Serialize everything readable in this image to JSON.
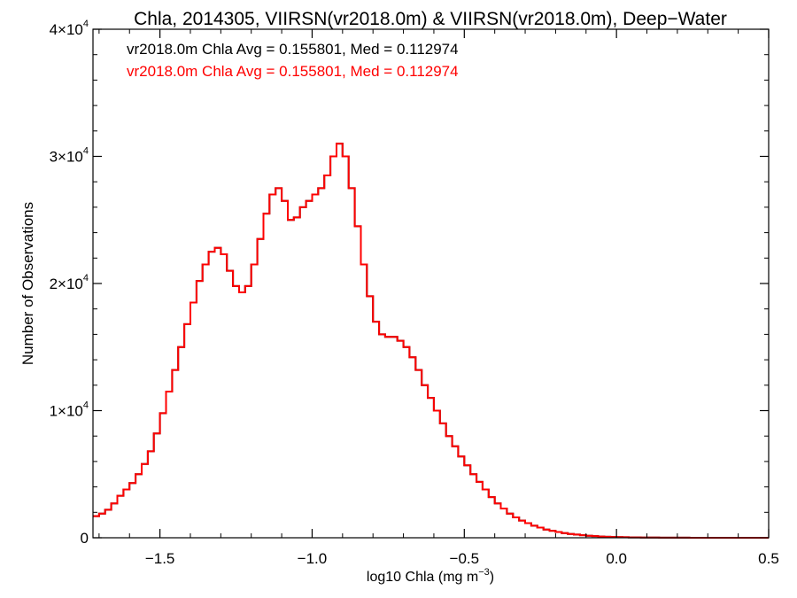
{
  "chart_data": {
    "type": "line",
    "title": "Chla, 2014305, VIIRSN(vr2018.0m) & VIIRSN(vr2018.0m), Deep−Water",
    "xlabel": "log10 Chla (mg m",
    "xlabel_sup": "−3",
    "xlabel_close": ")",
    "ylabel": "Number of Observations",
    "xlim": [
      -1.72,
      0.5
    ],
    "ylim": [
      0,
      40000
    ],
    "x_ticks": [
      -1.5,
      -1.0,
      -0.5,
      0.0,
      0.5
    ],
    "x_tick_labels": [
      "−1.5",
      "−1.0",
      "−0.5",
      "0.0",
      "0.5"
    ],
    "y_ticks": [
      0,
      10000,
      20000,
      30000,
      40000
    ],
    "y_tick_labels": [
      {
        "base": "0",
        "exp": ""
      },
      {
        "base": "1×10",
        "exp": "4"
      },
      {
        "base": "2×10",
        "exp": "4"
      },
      {
        "base": "3×10",
        "exp": "4"
      },
      {
        "base": "4×10",
        "exp": "4"
      }
    ],
    "grid": false,
    "annotations": [
      {
        "text": "vr2018.0m Chla Avg = 0.155801, Med = 0.112974",
        "color": "#000000"
      },
      {
        "text": "vr2018.0m Chla Avg = 0.155801, Med = 0.112974",
        "color": "#ff0000"
      }
    ],
    "series": [
      {
        "name": "vr2018.0m",
        "color": "#000000",
        "step": true,
        "x": [
          -1.72,
          -1.7,
          -1.68,
          -1.66,
          -1.64,
          -1.62,
          -1.6,
          -1.58,
          -1.56,
          -1.54,
          -1.52,
          -1.5,
          -1.48,
          -1.46,
          -1.44,
          -1.42,
          -1.4,
          -1.38,
          -1.36,
          -1.34,
          -1.32,
          -1.3,
          -1.28,
          -1.26,
          -1.24,
          -1.22,
          -1.2,
          -1.18,
          -1.16,
          -1.14,
          -1.12,
          -1.1,
          -1.08,
          -1.06,
          -1.04,
          -1.02,
          -1.0,
          -0.98,
          -0.96,
          -0.94,
          -0.92,
          -0.9,
          -0.88,
          -0.86,
          -0.84,
          -0.82,
          -0.8,
          -0.78,
          -0.76,
          -0.74,
          -0.72,
          -0.7,
          -0.68,
          -0.66,
          -0.64,
          -0.62,
          -0.6,
          -0.58,
          -0.56,
          -0.54,
          -0.52,
          -0.5,
          -0.48,
          -0.46,
          -0.44,
          -0.42,
          -0.4,
          -0.38,
          -0.36,
          -0.34,
          -0.32,
          -0.3,
          -0.28,
          -0.26,
          -0.24,
          -0.22,
          -0.2,
          -0.18,
          -0.16,
          -0.14,
          -0.12,
          -0.1,
          -0.08,
          -0.06,
          -0.04,
          -0.02,
          0.0,
          0.02,
          0.04,
          0.06,
          0.08,
          0.1,
          0.12,
          0.14,
          0.16,
          0.18,
          0.2,
          0.22,
          0.24,
          0.26,
          0.28,
          0.3,
          0.32,
          0.34,
          0.36,
          0.38,
          0.4,
          0.42,
          0.44,
          0.46,
          0.48
        ],
        "y": [
          1700,
          1900,
          2200,
          2700,
          3300,
          3800,
          4300,
          5000,
          5800,
          6800,
          8200,
          9800,
          11500,
          13200,
          15000,
          16800,
          18500,
          20200,
          21500,
          22500,
          22800,
          22300,
          21000,
          19800,
          19300,
          19800,
          21500,
          23500,
          25500,
          27000,
          27500,
          26500,
          25000,
          25200,
          26000,
          26500,
          27000,
          27500,
          28500,
          30000,
          31000,
          30000,
          27500,
          24500,
          21500,
          19000,
          17000,
          16000,
          15800,
          15800,
          15500,
          15000,
          14200,
          13200,
          12000,
          11000,
          10000,
          9000,
          8000,
          7200,
          6400,
          5700,
          5000,
          4400,
          3800,
          3200,
          2700,
          2300,
          1900,
          1600,
          1350,
          1150,
          950,
          800,
          650,
          550,
          450,
          370,
          300,
          250,
          200,
          160,
          130,
          100,
          80,
          60,
          50,
          40,
          30,
          25,
          20,
          15,
          12,
          10,
          8,
          6,
          5,
          4,
          3,
          3,
          2,
          2,
          2,
          1,
          1,
          1,
          1,
          1,
          0,
          0,
          0
        ]
      },
      {
        "name": "vr2018.0m",
        "color": "#ff0000",
        "step": true,
        "x": [
          -1.72,
          -1.7,
          -1.68,
          -1.66,
          -1.64,
          -1.62,
          -1.6,
          -1.58,
          -1.56,
          -1.54,
          -1.52,
          -1.5,
          -1.48,
          -1.46,
          -1.44,
          -1.42,
          -1.4,
          -1.38,
          -1.36,
          -1.34,
          -1.32,
          -1.3,
          -1.28,
          -1.26,
          -1.24,
          -1.22,
          -1.2,
          -1.18,
          -1.16,
          -1.14,
          -1.12,
          -1.1,
          -1.08,
          -1.06,
          -1.04,
          -1.02,
          -1.0,
          -0.98,
          -0.96,
          -0.94,
          -0.92,
          -0.9,
          -0.88,
          -0.86,
          -0.84,
          -0.82,
          -0.8,
          -0.78,
          -0.76,
          -0.74,
          -0.72,
          -0.7,
          -0.68,
          -0.66,
          -0.64,
          -0.62,
          -0.6,
          -0.58,
          -0.56,
          -0.54,
          -0.52,
          -0.5,
          -0.48,
          -0.46,
          -0.44,
          -0.42,
          -0.4,
          -0.38,
          -0.36,
          -0.34,
          -0.32,
          -0.3,
          -0.28,
          -0.26,
          -0.24,
          -0.22,
          -0.2,
          -0.18,
          -0.16,
          -0.14,
          -0.12,
          -0.1,
          -0.08,
          -0.06,
          -0.04,
          -0.02,
          0.0,
          0.02,
          0.04,
          0.06,
          0.08,
          0.1,
          0.12,
          0.14,
          0.16,
          0.18,
          0.2,
          0.22,
          0.24,
          0.26,
          0.28,
          0.3,
          0.32,
          0.34,
          0.36,
          0.38,
          0.4,
          0.42,
          0.44,
          0.46,
          0.48
        ],
        "y": [
          1700,
          1900,
          2200,
          2700,
          3300,
          3800,
          4300,
          5000,
          5800,
          6800,
          8200,
          9800,
          11500,
          13200,
          15000,
          16800,
          18500,
          20200,
          21500,
          22500,
          22800,
          22300,
          21000,
          19800,
          19300,
          19800,
          21500,
          23500,
          25500,
          27000,
          27500,
          26500,
          25000,
          25200,
          26000,
          26500,
          27000,
          27500,
          28500,
          30000,
          31000,
          30000,
          27500,
          24500,
          21500,
          19000,
          17000,
          16000,
          15800,
          15800,
          15500,
          15000,
          14200,
          13200,
          12000,
          11000,
          10000,
          9000,
          8000,
          7200,
          6400,
          5700,
          5000,
          4400,
          3800,
          3200,
          2700,
          2300,
          1900,
          1600,
          1350,
          1150,
          950,
          800,
          650,
          550,
          450,
          370,
          300,
          250,
          200,
          160,
          130,
          100,
          80,
          60,
          50,
          40,
          30,
          25,
          20,
          15,
          12,
          10,
          8,
          6,
          5,
          4,
          3,
          3,
          2,
          2,
          2,
          1,
          1,
          1,
          1,
          1,
          0,
          0,
          0
        ]
      }
    ]
  }
}
